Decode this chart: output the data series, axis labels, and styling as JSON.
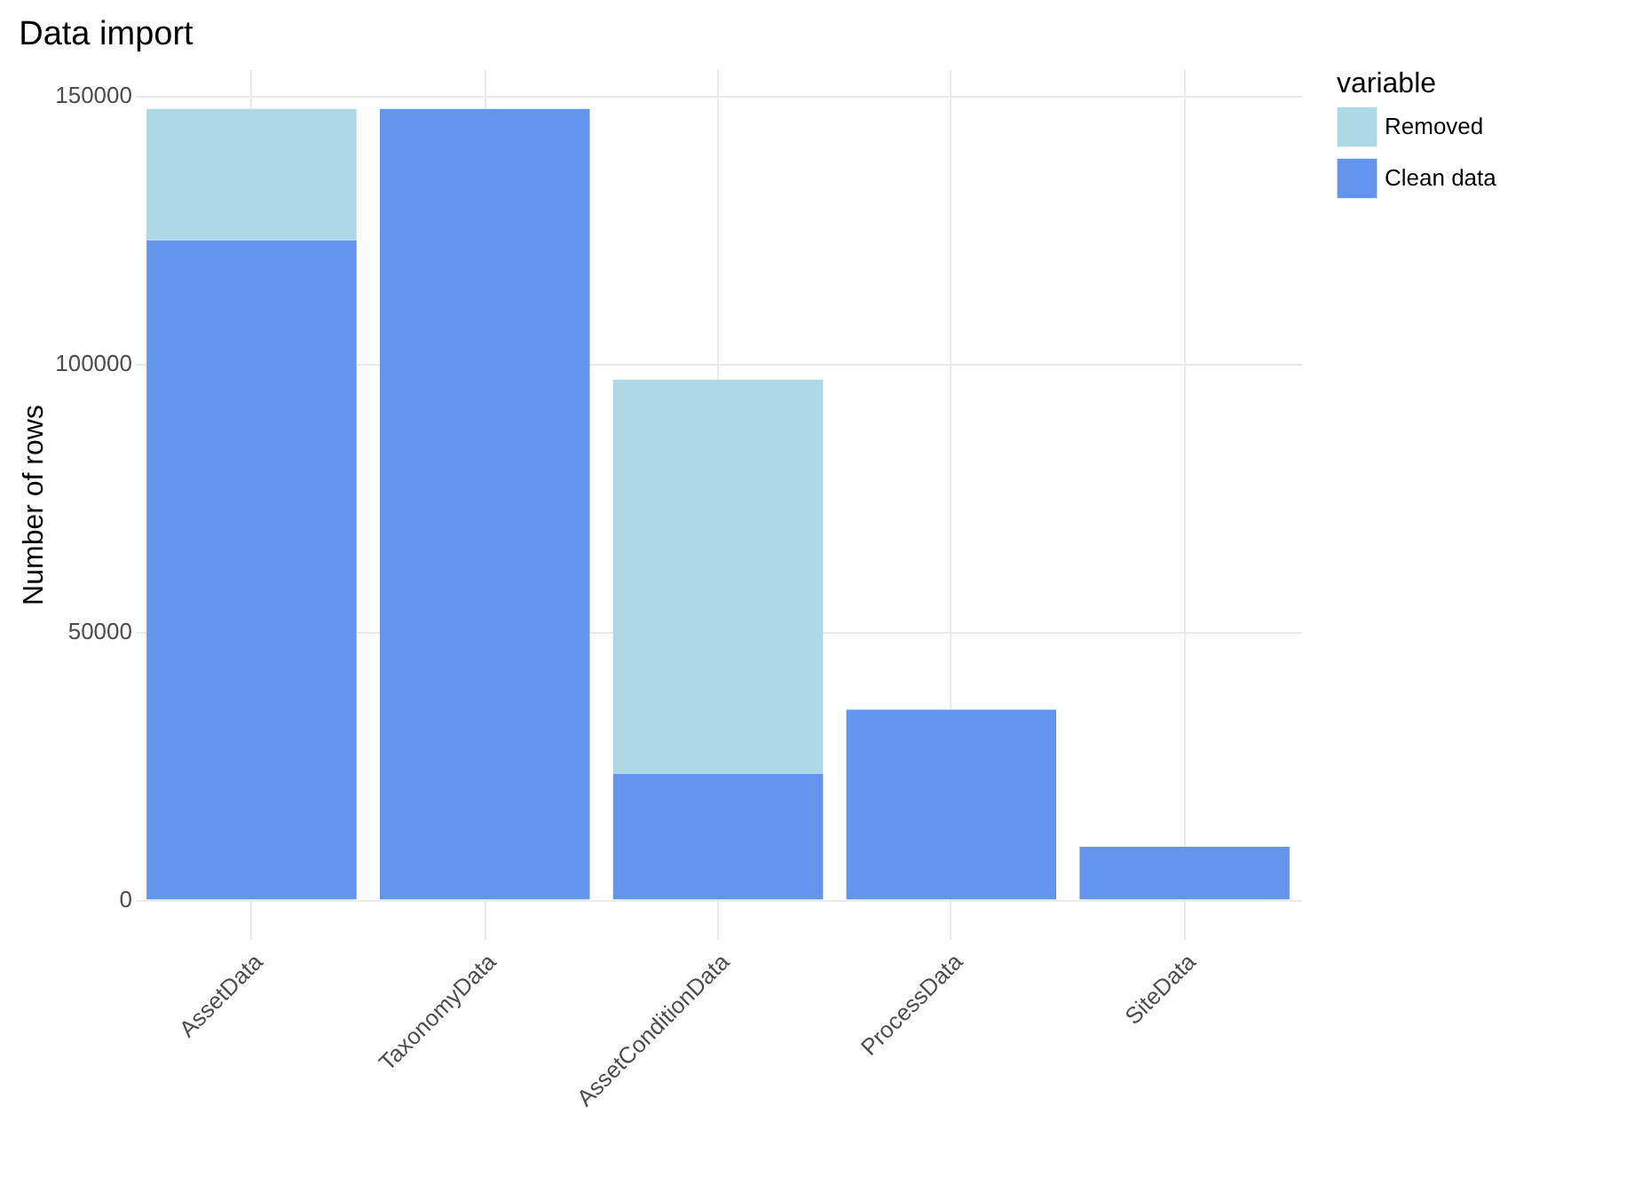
{
  "chart_data": {
    "type": "bar",
    "title": "Data import",
    "ylabel": "Number of rows",
    "legend_title": "variable",
    "categories": [
      "AssetData",
      "TaxonomyData",
      "AssetConditionData",
      "ProcessData",
      "SiteData"
    ],
    "stacked": true,
    "series": [
      {
        "name": "Clean data",
        "color": "#6495ed",
        "values": [
          122900,
          147400,
          23400,
          35400,
          9800
        ]
      },
      {
        "name": "Removed",
        "color": "#add8e6",
        "values": [
          24500,
          null,
          73500,
          null,
          null
        ]
      }
    ],
    "ylim": [
      -7400,
      154800
    ],
    "yticks": [
      0,
      50000,
      100000,
      150000
    ],
    "grid": true,
    "legend": "right"
  }
}
